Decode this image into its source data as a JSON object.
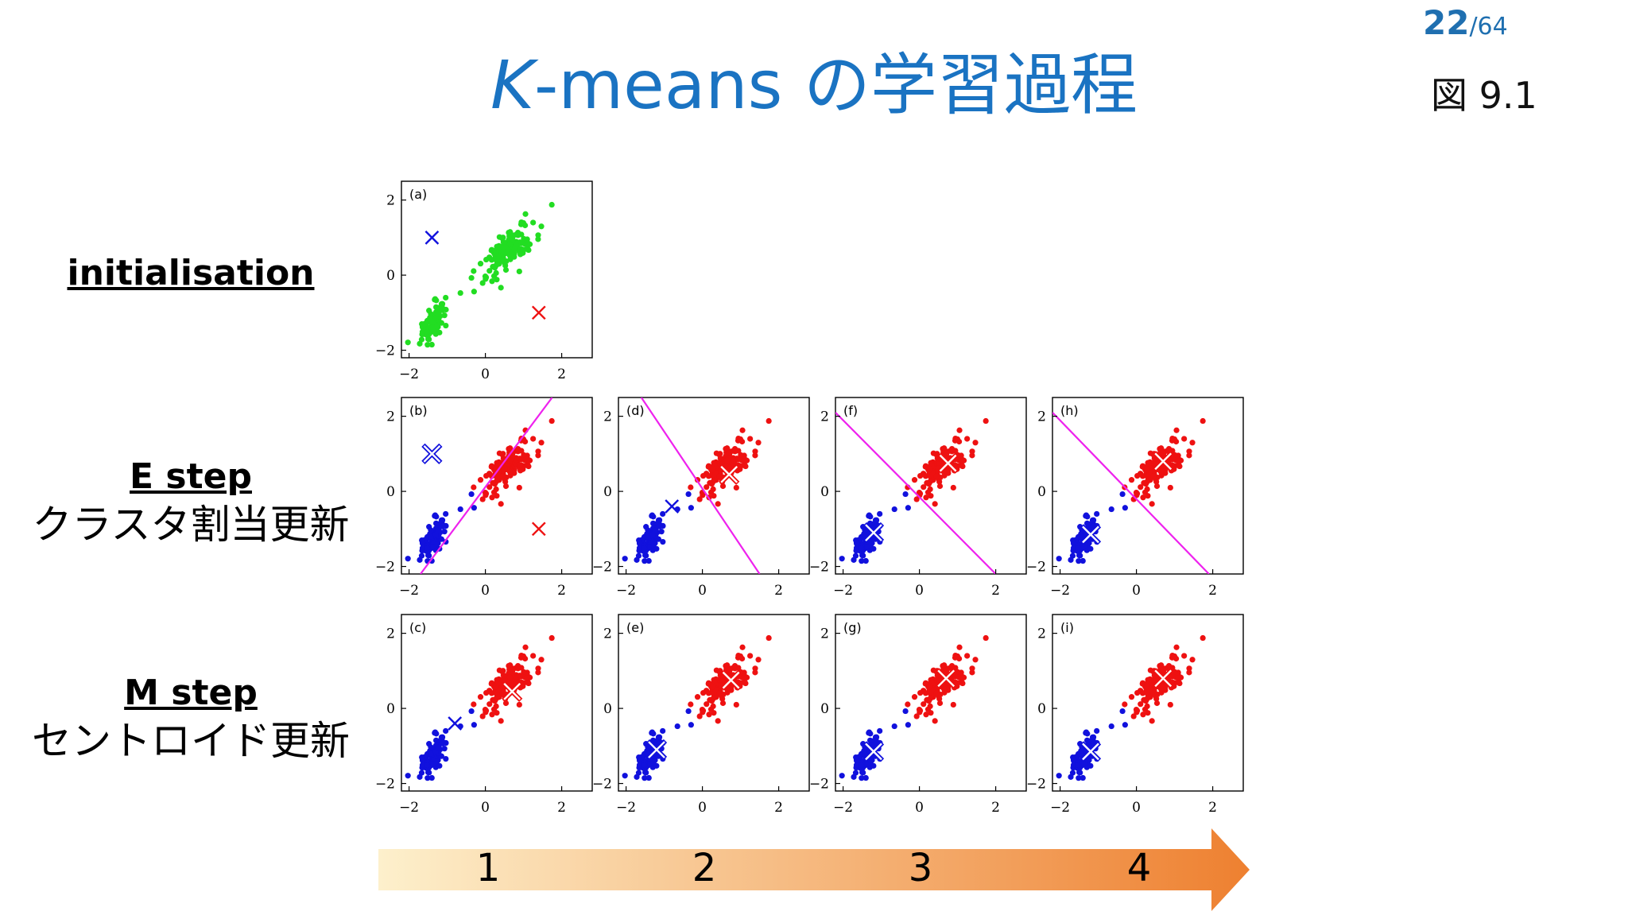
{
  "header": {
    "page_current": "22",
    "page_total": "/64",
    "title_k": "K",
    "title_rest": "-means の学習過程",
    "figure_ref": "図 9.1"
  },
  "rows": {
    "init": {
      "label": "initialisation"
    },
    "estep": {
      "label": "E step",
      "sublabel": "クラスタ割当更新"
    },
    "mstep": {
      "label": "M step",
      "sublabel": "セントロイド更新"
    }
  },
  "colors": {
    "unassigned": "#22dd22",
    "cluster1": "#1111dd",
    "cluster2": "#ee1111",
    "boundary": "#ee22ee",
    "title": "#1a73c2",
    "arrow_start": "#fdf0cc",
    "arrow_end": "#ee8030"
  },
  "chart_data": [
    {
      "panel": "(a)",
      "type": "scatter",
      "xlim": [
        -2.2,
        2.8
      ],
      "ylim": [
        -2.2,
        2.5
      ],
      "xticks": [
        "−2",
        "0",
        "2"
      ],
      "yticks": [
        "2",
        "0",
        "−2"
      ],
      "points": "all-unassigned",
      "centroids": [
        {
          "x": -1.4,
          "y": 1.0,
          "cluster": 1
        },
        {
          "x": 1.4,
          "y": -1.0,
          "cluster": 2
        }
      ],
      "boundary": null
    },
    {
      "panel": "(b)",
      "type": "scatter",
      "xlim": [
        -2.2,
        2.8
      ],
      "ylim": [
        -2.2,
        2.5
      ],
      "xticks": [
        "−2",
        "0",
        "2"
      ],
      "yticks": [
        "2",
        "0",
        "−2"
      ],
      "points": "assigned",
      "centroids": [
        {
          "x": -1.4,
          "y": 1.0,
          "cluster": 1
        },
        {
          "x": 1.4,
          "y": -1.0,
          "cluster": 2
        }
      ],
      "boundary": [
        [
          -1.7,
          -2.2
        ],
        [
          1.75,
          2.5
        ]
      ]
    },
    {
      "panel": "(c)",
      "type": "scatter",
      "xlim": [
        -2.2,
        2.8
      ],
      "ylim": [
        -2.2,
        2.5
      ],
      "xticks": [
        "−2",
        "0",
        "2"
      ],
      "yticks": [
        "2",
        "0",
        "−2"
      ],
      "points": "assigned",
      "centroids": [
        {
          "x": -0.8,
          "y": -0.4,
          "cluster": 1
        },
        {
          "x": 0.7,
          "y": 0.45,
          "cluster": 2
        }
      ],
      "boundary": null
    },
    {
      "panel": "(d)",
      "type": "scatter",
      "xlim": [
        -2.2,
        2.8
      ],
      "ylim": [
        -2.2,
        2.5
      ],
      "xticks": [
        "−2",
        "0",
        "2"
      ],
      "yticks": [
        "2",
        "0",
        "−2"
      ],
      "points": "assigned",
      "centroids": [
        {
          "x": -0.8,
          "y": -0.4,
          "cluster": 1
        },
        {
          "x": 0.7,
          "y": 0.45,
          "cluster": 2
        }
      ],
      "boundary": [
        [
          -1.6,
          2.5
        ],
        [
          1.5,
          -2.2
        ]
      ]
    },
    {
      "panel": "(e)",
      "type": "scatter",
      "xlim": [
        -2.2,
        2.8
      ],
      "ylim": [
        -2.2,
        2.5
      ],
      "xticks": [
        "−2",
        "0",
        "2"
      ],
      "yticks": [
        "2",
        "0",
        "−2"
      ],
      "points": "assigned",
      "centroids": [
        {
          "x": -1.2,
          "y": -1.1,
          "cluster": 1
        },
        {
          "x": 0.75,
          "y": 0.75,
          "cluster": 2
        }
      ],
      "boundary": null
    },
    {
      "panel": "(f)",
      "type": "scatter",
      "xlim": [
        -2.2,
        2.8
      ],
      "ylim": [
        -2.2,
        2.5
      ],
      "xticks": [
        "−2",
        "0",
        "2"
      ],
      "yticks": [
        "2",
        "0",
        "−2"
      ],
      "points": "assigned",
      "centroids": [
        {
          "x": -1.2,
          "y": -1.1,
          "cluster": 1
        },
        {
          "x": 0.75,
          "y": 0.75,
          "cluster": 2
        }
      ],
      "boundary": [
        [
          -2.2,
          2.1
        ],
        [
          2.0,
          -2.2
        ]
      ]
    },
    {
      "panel": "(g)",
      "type": "scatter",
      "xlim": [
        -2.2,
        2.8
      ],
      "ylim": [
        -2.2,
        2.5
      ],
      "xticks": [
        "−2",
        "0",
        "2"
      ],
      "yticks": [
        "2",
        "0",
        "−2"
      ],
      "points": "assigned",
      "centroids": [
        {
          "x": -1.2,
          "y": -1.15,
          "cluster": 1
        },
        {
          "x": 0.7,
          "y": 0.8,
          "cluster": 2
        }
      ],
      "boundary": null
    },
    {
      "panel": "(h)",
      "type": "scatter",
      "xlim": [
        -2.2,
        2.8
      ],
      "ylim": [
        -2.2,
        2.5
      ],
      "xticks": [
        "−2",
        "0",
        "2"
      ],
      "yticks": [
        "2",
        "0",
        "−2"
      ],
      "points": "assigned",
      "centroids": [
        {
          "x": -1.2,
          "y": -1.15,
          "cluster": 1
        },
        {
          "x": 0.7,
          "y": 0.8,
          "cluster": 2
        }
      ],
      "boundary": [
        [
          -2.2,
          2.1
        ],
        [
          1.9,
          -2.2
        ]
      ]
    },
    {
      "panel": "(i)",
      "type": "scatter",
      "xlim": [
        -2.2,
        2.8
      ],
      "ylim": [
        -2.2,
        2.5
      ],
      "xticks": [
        "−2",
        "0",
        "2"
      ],
      "yticks": [
        "2",
        "0",
        "−2"
      ],
      "points": "assigned",
      "centroids": [
        {
          "x": -1.2,
          "y": -1.15,
          "cluster": 1
        },
        {
          "x": 0.7,
          "y": 0.8,
          "cluster": 2
        }
      ],
      "boundary": null
    }
  ],
  "arrow": {
    "labels": [
      "1",
      "2",
      "3",
      "4"
    ]
  }
}
